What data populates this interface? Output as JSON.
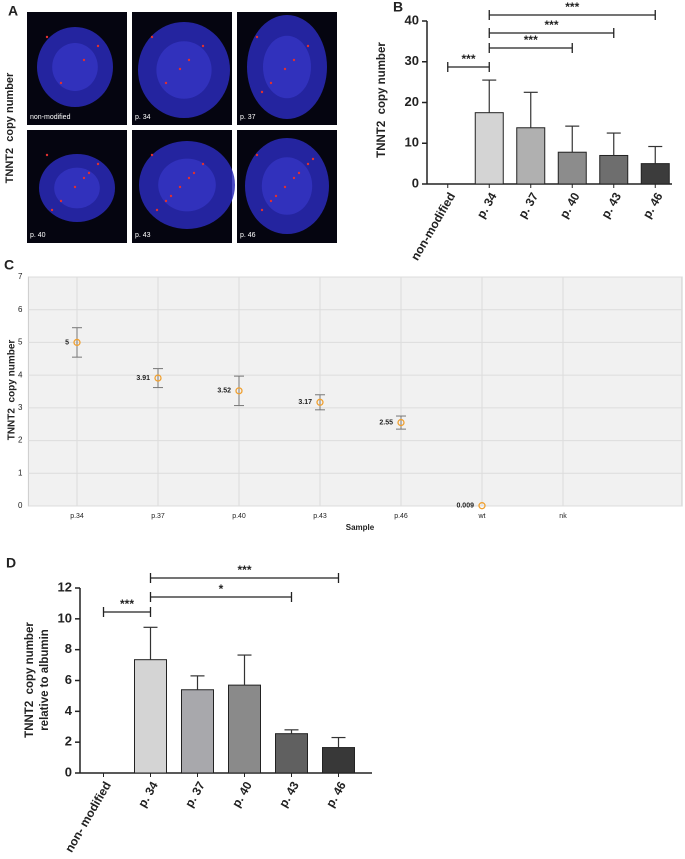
{
  "panel_a": {
    "letter": "A",
    "y_label": "TNNT2  copy number",
    "images": [
      "non-modified",
      "p. 34",
      "p. 37",
      "p. 40",
      "p. 43",
      "p. 46"
    ]
  },
  "chart_data": [
    {
      "type": "bar",
      "letter": "B",
      "y_label": "TNNT2  copy number",
      "categories": [
        "non-modified",
        "p. 34",
        "p. 37",
        "p. 40",
        "p. 43",
        "p. 46"
      ],
      "values": [
        0,
        17.5,
        13.8,
        7.8,
        7,
        5
      ],
      "errors": [
        0,
        8,
        8.7,
        6.4,
        5.5,
        4.2
      ],
      "colors": [
        "#e0e0e0",
        "#d4d4d4",
        "#b0b0b0",
        "#8c8c8c",
        "#6e6e6e",
        "#3c3c3c"
      ],
      "ylim": [
        0,
        40
      ],
      "yticks": [
        0,
        10,
        20,
        30,
        40
      ],
      "brackets": [
        {
          "from": "p. 34",
          "to": "non-modified",
          "label": "***"
        },
        {
          "from": "p. 34",
          "to": "p. 40",
          "label": "***"
        },
        {
          "from": "p. 34",
          "to": "p. 43",
          "label": "***"
        },
        {
          "from": "p. 34",
          "to": "p. 46",
          "label": "***"
        }
      ]
    },
    {
      "type": "scatter",
      "letter": "C",
      "y_label": "TNNT2  copy number",
      "x_label": "Sample",
      "categories": [
        "p.34",
        "p.37",
        "p.40",
        "p.43",
        "p.46",
        "wt",
        "nk"
      ],
      "values": [
        5,
        3.91,
        3.52,
        3.17,
        2.55,
        0.009,
        null
      ],
      "errors": [
        0.45,
        0.29,
        0.45,
        0.23,
        0.2,
        0,
        null
      ],
      "color": "#f0a030",
      "grid": true,
      "ylim": [
        0,
        7
      ],
      "yticks": [
        0,
        1,
        2,
        3,
        4,
        5,
        6,
        7
      ]
    },
    {
      "type": "bar",
      "letter": "D",
      "y_label": [
        "TNNT2  copy number",
        "relative to albumin"
      ],
      "categories": [
        "non- modified",
        "p. 34",
        "p. 37",
        "p. 40",
        "p. 43",
        "p. 46"
      ],
      "values": [
        0,
        7.35,
        5.4,
        5.7,
        2.55,
        1.65
      ],
      "errors": [
        0,
        2.1,
        0.9,
        1.95,
        0.25,
        0.65
      ],
      "colors": [
        "#e0e0e0",
        "#d4d4d4",
        "#a8a8ac",
        "#8a8a8a",
        "#606060",
        "#383838"
      ],
      "ylim": [
        0,
        12
      ],
      "yticks": [
        0,
        2,
        4,
        6,
        8,
        10,
        12
      ],
      "brackets": [
        {
          "from": "p. 34",
          "to": "non- modified",
          "label": "***"
        },
        {
          "from": "p. 34",
          "to": "p. 43",
          "label": "*"
        },
        {
          "from": "p. 34",
          "to": "p. 46",
          "label": "***"
        }
      ]
    }
  ]
}
